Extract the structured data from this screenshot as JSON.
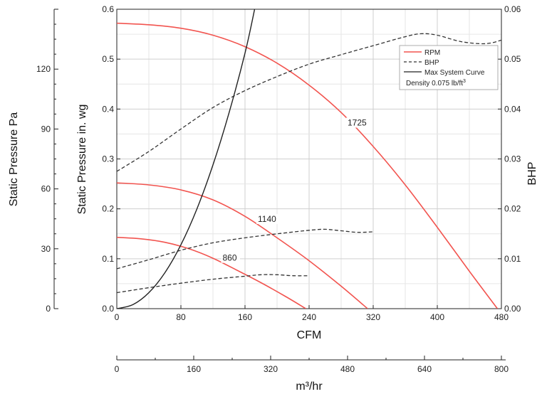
{
  "chart_data": {
    "type": "line",
    "xlabel": "CFM",
    "x2label": "m³/hr",
    "ylabel": "Static Pressure in. wg",
    "y2label": "BHP",
    "y3label": "Static Pressure Pa",
    "xlim": [
      0,
      480
    ],
    "ylim": [
      0,
      0.6
    ],
    "y2lim": [
      0,
      0.06
    ],
    "x2lim": [
      0,
      800
    ],
    "y3lim": [
      0,
      150
    ],
    "grid": true,
    "legend_position": "top-right",
    "xticks": [
      "0",
      "80",
      "160",
      "240",
      "320",
      "400",
      "480"
    ],
    "yticks": [
      "0.0",
      "0.1",
      "0.2",
      "0.3",
      "0.4",
      "0.5",
      "0.6"
    ],
    "y2ticks": [
      "0.00",
      "0.01",
      "0.02",
      "0.03",
      "0.04",
      "0.05",
      "0.06"
    ],
    "x2ticks": [
      "0",
      "160",
      "320",
      "480",
      "640",
      "800"
    ],
    "y3ticks": [
      "0",
      "30",
      "60",
      "90",
      "120"
    ],
    "legend": {
      "rpm": "RPM",
      "bhp": "BHP",
      "system": "Max System Curve",
      "density_prefix": "Density 0.075 lb/ft",
      "density_sup": "3"
    },
    "series": [
      {
        "name": "1725",
        "kind": "rpm",
        "x": [
          0,
          40,
          80,
          120,
          160,
          200,
          240,
          280,
          320,
          360,
          400,
          440,
          475
        ],
        "y": [
          0.572,
          0.569,
          0.562,
          0.548,
          0.525,
          0.492,
          0.448,
          0.393,
          0.325,
          0.248,
          0.163,
          0.075,
          0.0
        ]
      },
      {
        "name": "1140",
        "kind": "rpm",
        "x": [
          0,
          40,
          80,
          120,
          160,
          200,
          240,
          280,
          313
        ],
        "y": [
          0.252,
          0.248,
          0.238,
          0.218,
          0.185,
          0.142,
          0.096,
          0.045,
          0.0
        ]
      },
      {
        "name": "860",
        "kind": "rpm",
        "x": [
          0,
          30,
          60,
          90,
          120,
          150,
          180,
          210,
          236
        ],
        "y": [
          0.143,
          0.14,
          0.133,
          0.12,
          0.101,
          0.077,
          0.052,
          0.025,
          0.0
        ]
      },
      {
        "name": "BHP 1725",
        "kind": "bhp",
        "x": [
          0,
          40,
          80,
          120,
          160,
          200,
          240,
          280,
          320,
          360,
          380,
          400,
          430,
          460,
          480
        ],
        "y2": [
          0.0275,
          0.0315,
          0.036,
          0.0403,
          0.0437,
          0.0465,
          0.049,
          0.0509,
          0.0527,
          0.0545,
          0.0551,
          0.0548,
          0.0535,
          0.0531,
          0.0538
        ]
      },
      {
        "name": "BHP 1140",
        "kind": "bhp",
        "x": [
          0,
          40,
          80,
          120,
          160,
          200,
          240,
          260,
          280,
          300,
          320
        ],
        "y2": [
          0.008,
          0.0098,
          0.0117,
          0.0132,
          0.0142,
          0.015,
          0.0157,
          0.0159,
          0.0156,
          0.0153,
          0.0154
        ]
      },
      {
        "name": "BHP 860",
        "kind": "bhp",
        "x": [
          0,
          40,
          80,
          120,
          160,
          180,
          200,
          220,
          240
        ],
        "y2": [
          0.0032,
          0.0042,
          0.0051,
          0.0059,
          0.0065,
          0.0068,
          0.0068,
          0.0066,
          0.0066
        ]
      },
      {
        "name": "Max System Curve",
        "kind": "system",
        "x": [
          0,
          20,
          40,
          60,
          80,
          100,
          120,
          140,
          160,
          172
        ],
        "y": [
          0.0,
          0.008,
          0.032,
          0.072,
          0.128,
          0.2,
          0.288,
          0.392,
          0.512,
          0.6
        ]
      }
    ],
    "curve_labels": [
      {
        "text": "1725",
        "x": 288,
        "y": 0.367
      },
      {
        "text": "1140",
        "x": 176,
        "y": 0.174
      },
      {
        "text": "860",
        "x": 132,
        "y": 0.096
      }
    ]
  }
}
